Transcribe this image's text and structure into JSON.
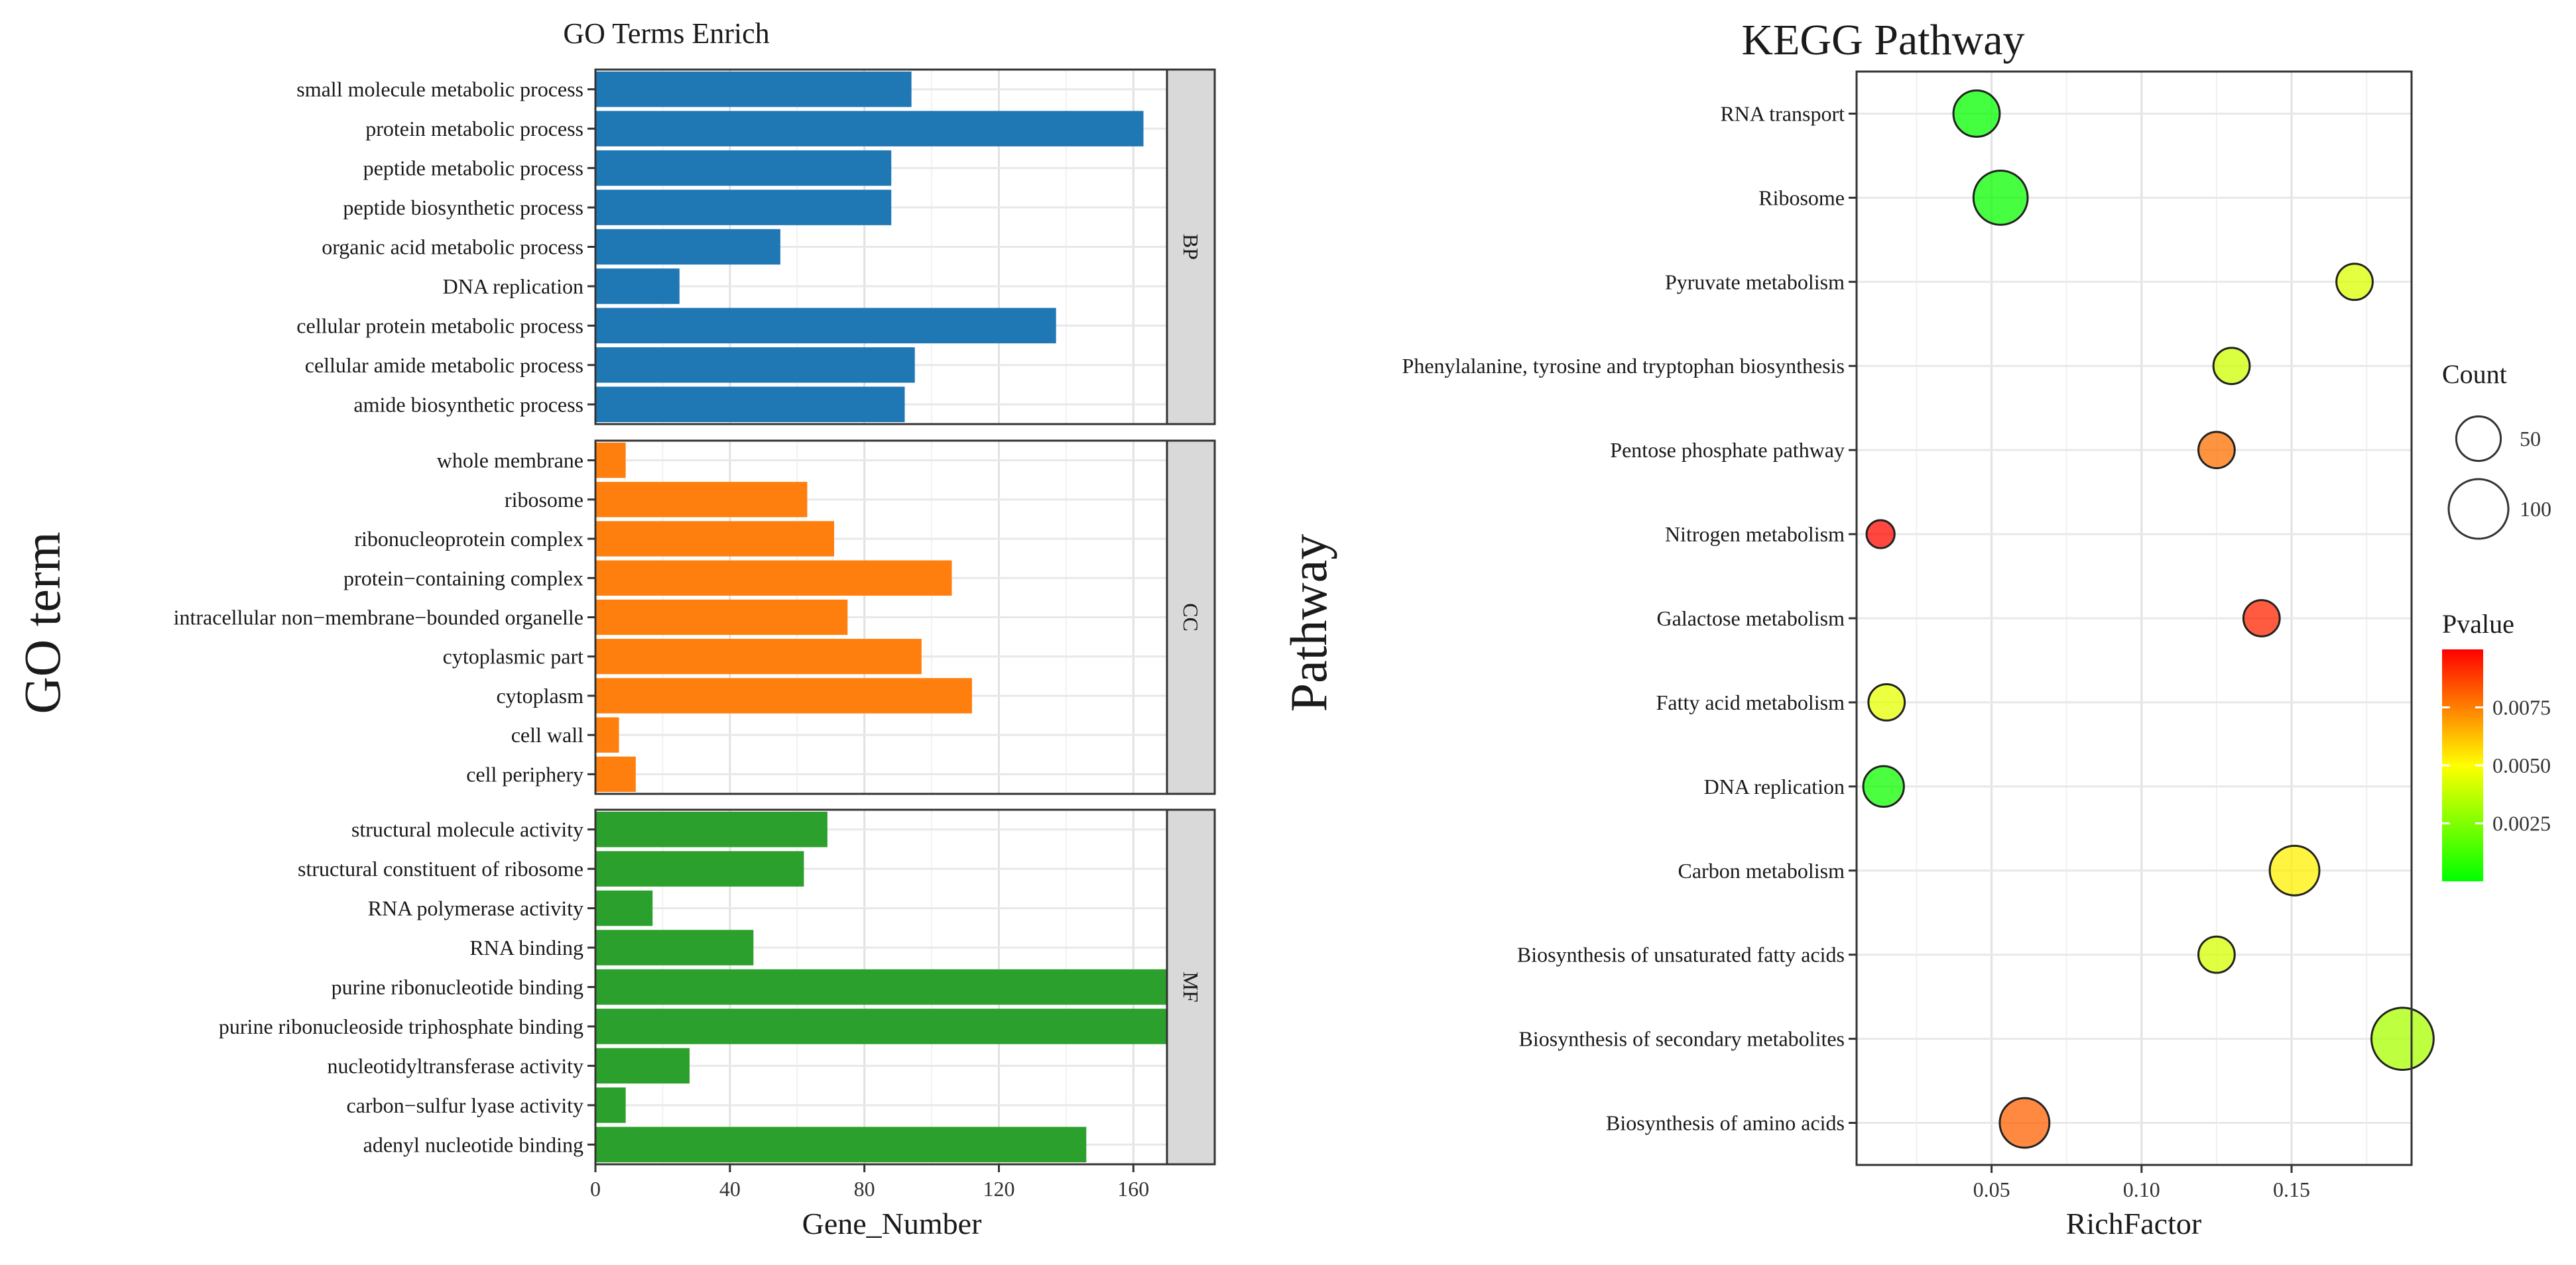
{
  "chart_data": [
    {
      "type": "bar",
      "orientation": "horizontal",
      "title": "GO Terms Enrich",
      "xlabel": "Gene_Number",
      "ylabel": "GO term",
      "xlim": [
        0,
        170
      ],
      "xticks": [
        "0",
        "40",
        "80",
        "120",
        "160"
      ],
      "grid": true,
      "facets": [
        {
          "label": "BP",
          "color": "#1f77b4",
          "categories": [
            "small molecule metabolic process",
            "protein metabolic process",
            "peptide metabolic process",
            "peptide biosynthetic process",
            "organic acid metabolic process",
            "DNA replication",
            "cellular protein metabolic process",
            "cellular amide metabolic process",
            "amide biosynthetic process"
          ],
          "values": [
            94,
            163,
            88,
            88,
            55,
            25,
            137,
            95,
            92
          ]
        },
        {
          "label": "CC",
          "color": "#ff7f0e",
          "categories": [
            "whole membrane",
            "ribosome",
            "ribonucleoprotein complex",
            "protein−containing complex",
            "intracellular non−membrane−bounded organelle",
            "cytoplasmic part",
            "cytoplasm",
            "cell wall",
            "cell periphery"
          ],
          "values": [
            9,
            63,
            71,
            106,
            75,
            97,
            112,
            7,
            12
          ]
        },
        {
          "label": "MF",
          "color": "#2ca02c",
          "categories": [
            "structural molecule activity",
            "structural constituent of ribosome",
            "RNA polymerase activity",
            "RNA binding",
            "purine ribonucleotide binding",
            "purine ribonucleoside triphosphate binding",
            "nucleotidyltransferase activity",
            "carbon−sulfur lyase activity",
            "adenyl nucleotide binding"
          ],
          "values": [
            69,
            62,
            17,
            47,
            171,
            170,
            28,
            9,
            146
          ]
        }
      ]
    },
    {
      "type": "scatter",
      "title": "KEGG Pathway",
      "xlabel": "RichFactor",
      "ylabel": "Pathway",
      "xlim": [
        0.005,
        0.19
      ],
      "xticks": [
        0.05,
        0.1,
        0.15
      ],
      "xtick_labels": [
        "0.05",
        "0.10",
        "0.15"
      ],
      "grid": true,
      "categories": [
        "RNA transport",
        "Ribosome",
        "Pyruvate metabolism",
        "Phenylalanine, tyrosine and tryptophan biosynthesis",
        "Pentose phosphate pathway",
        "Nitrogen metabolism",
        "Galactose metabolism",
        "Fatty acid metabolism",
        "DNA replication",
        "Carbon metabolism",
        "Biosynthesis of unsaturated fatty acids",
        "Biosynthesis of secondary metabolites",
        "Biosynthesis of amino acids"
      ],
      "richfactor": [
        0.045,
        0.053,
        0.171,
        0.13,
        0.125,
        0.013,
        0.14,
        0.015,
        0.014,
        0.151,
        0.125,
        0.187,
        0.061
      ],
      "count": [
        55,
        80,
        30,
        30,
        30,
        15,
        30,
        30,
        40,
        65,
        30,
        110,
        65
      ],
      "pvalue": [
        0.0001,
        0.0002,
        0.0043,
        0.004,
        0.0078,
        0.0098,
        0.0093,
        0.0045,
        0.0003,
        0.0053,
        0.0042,
        0.0033,
        0.0081
      ],
      "size_legend": {
        "title": "Count",
        "labels": [
          "50",
          "100"
        ],
        "values": [
          50,
          100
        ]
      },
      "color_legend": {
        "title": "Pvalue",
        "labels": [
          "0.0075",
          "0.0050",
          "0.0025"
        ],
        "values": [
          0.0075,
          0.005,
          0.0025
        ],
        "range": [
          0,
          0.01
        ],
        "low_color": "#00ff00",
        "high_color": "#ff0000"
      }
    }
  ]
}
